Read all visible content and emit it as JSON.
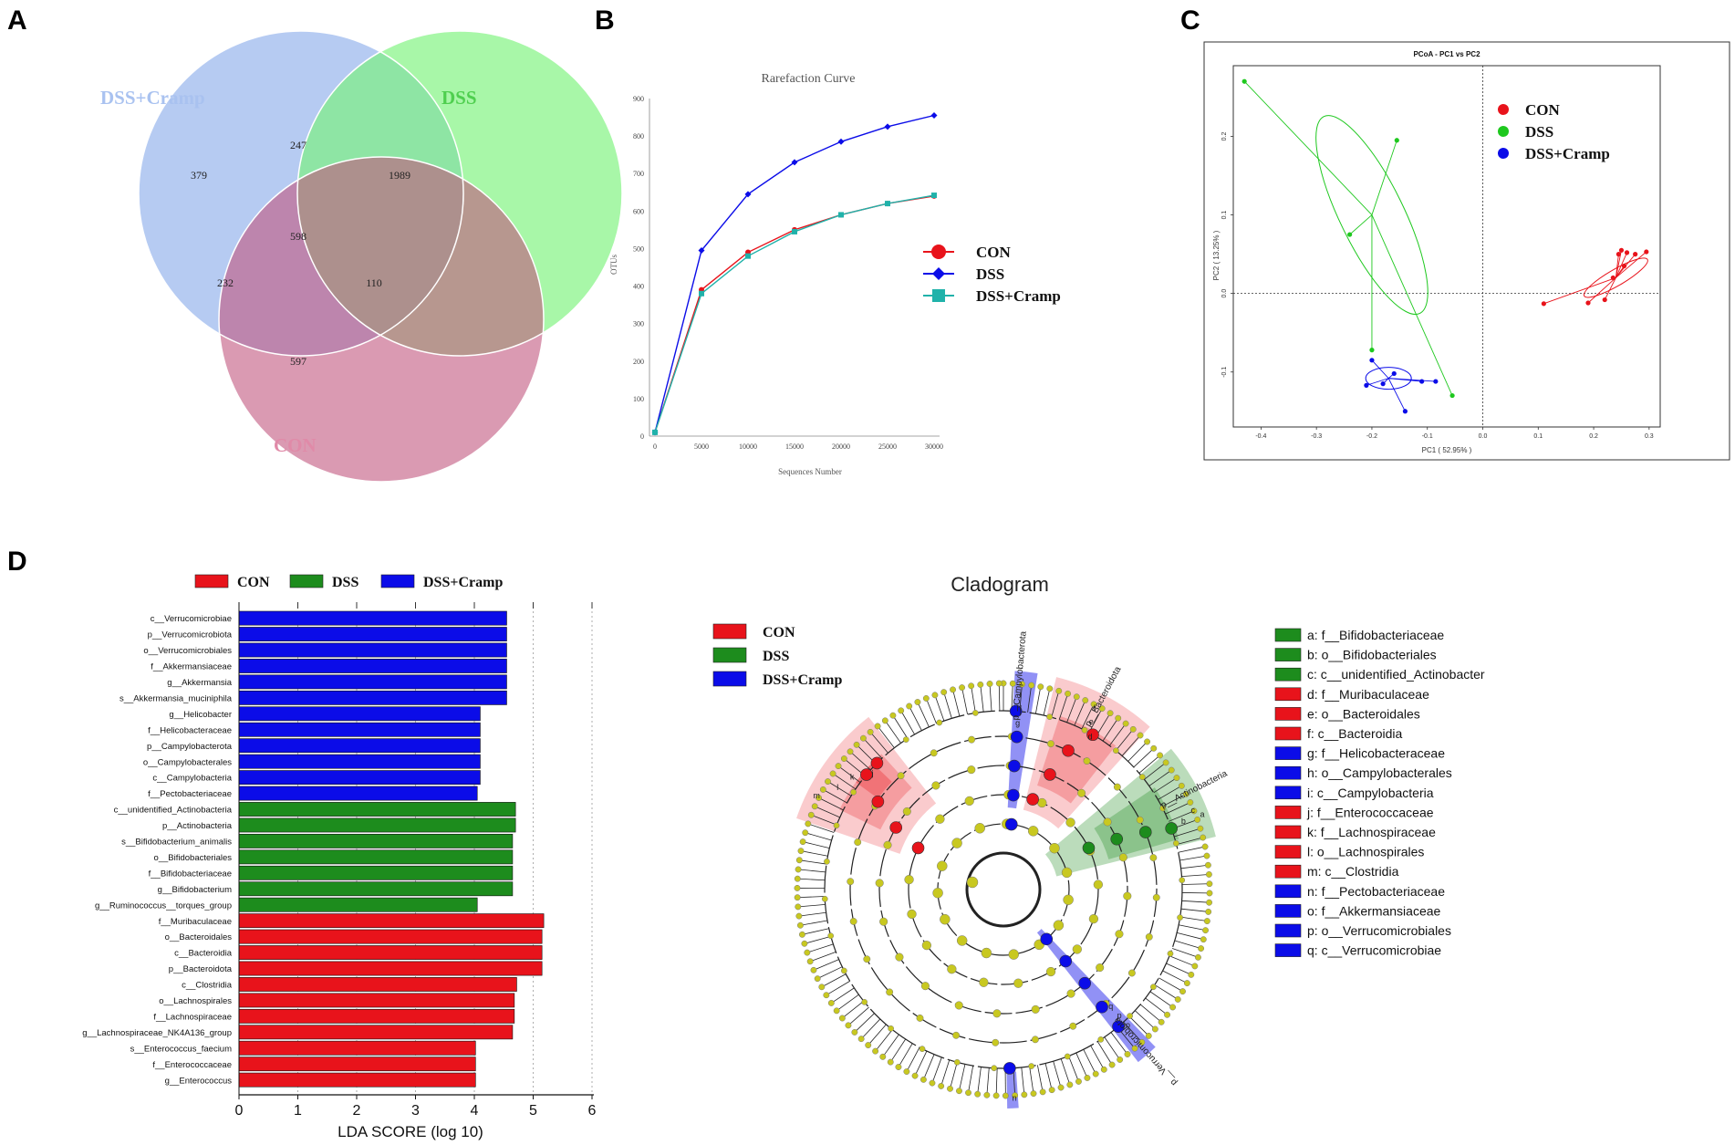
{
  "panel_labels": [
    "A",
    "B",
    "C",
    "D"
  ],
  "colors": {
    "con_red": "#e8131b",
    "dss_green": "#1d8c1d",
    "dss_cramp_blue": "#0b0ce8",
    "venn_blue": "#a9c2f0",
    "venn_green": "#7af27a",
    "venn_pink": "#d68aa6",
    "clado_yellow": "#c8c820"
  },
  "chart_data": [
    {
      "id": "A",
      "type": "venn",
      "sets": [
        {
          "name": "DSS+Cramp",
          "color": "#a9c2f0"
        },
        {
          "name": "DSS",
          "color": "#7af27a"
        },
        {
          "name": "CON",
          "color": "#d68aa6"
        }
      ],
      "regions": [
        {
          "sets": [
            "DSS+Cramp"
          ],
          "value": "379"
        },
        {
          "sets": [
            "DSS"
          ],
          "value": "1989"
        },
        {
          "sets": [
            "CON"
          ],
          "value": "597"
        },
        {
          "sets": [
            "DSS+Cramp",
            "DSS"
          ],
          "value": "247"
        },
        {
          "sets": [
            "DSS+Cramp",
            "CON"
          ],
          "value": "232"
        },
        {
          "sets": [
            "DSS",
            "CON"
          ],
          "value": "110"
        },
        {
          "sets": [
            "DSS+Cramp",
            "DSS",
            "CON"
          ],
          "value": "598"
        }
      ]
    },
    {
      "id": "B",
      "type": "line",
      "title": "Rarefaction Curve",
      "xlabel": "Sequences Number",
      "ylabel": "OTUs",
      "x": [
        0,
        5000,
        10000,
        15000,
        20000,
        25000,
        30000
      ],
      "xticks": [
        "0",
        "5000",
        "10000",
        "15000",
        "20000",
        "25000",
        "30000"
      ],
      "yticks": [
        "0",
        "100",
        "200",
        "300",
        "400",
        "500",
        "600",
        "700",
        "800",
        "900"
      ],
      "xlim": [
        0,
        30000
      ],
      "ylim": [
        0,
        900
      ],
      "series": [
        {
          "name": "CON",
          "color": "#e8131b",
          "marker": "circle",
          "values": [
            10,
            390,
            490,
            550,
            590,
            620,
            640
          ]
        },
        {
          "name": "DSS",
          "color": "#0b0ce8",
          "marker": "diamond",
          "values": [
            10,
            495,
            645,
            730,
            785,
            825,
            855
          ]
        },
        {
          "name": "DSS+Cramp",
          "color": "#20b2aa",
          "marker": "square",
          "values": [
            10,
            380,
            480,
            545,
            590,
            620,
            642
          ]
        }
      ]
    },
    {
      "id": "C",
      "type": "scatter",
      "title": "PCoA - PC1 vs PC2",
      "xlabel": "PC1 ( 52.95% )",
      "ylabel": "PC2 ( 13.25% )",
      "xticks": [
        "-0.4",
        "-0.3",
        "-0.2",
        "-0.1",
        "0.0",
        "0.1",
        "0.2",
        "0.3"
      ],
      "yticks": [
        "-0.1",
        "0.0",
        "0.1",
        "0.2"
      ],
      "xlim": [
        -0.45,
        0.32
      ],
      "ylim": [
        -0.17,
        0.29
      ],
      "series": [
        {
          "name": "CON",
          "color": "#e8131b",
          "points": [
            [
              0.11,
              -0.013
            ],
            [
              0.19,
              -0.012
            ],
            [
              0.22,
              -0.008
            ],
            [
              0.235,
              0.02
            ],
            [
              0.245,
              0.05
            ],
            [
              0.25,
              0.055
            ],
            [
              0.255,
              0.035
            ],
            [
              0.26,
              0.052
            ],
            [
              0.275,
              0.05
            ],
            [
              0.295,
              0.053
            ]
          ]
        },
        {
          "name": "DSS",
          "color": "#1ec81e",
          "points": [
            [
              -0.43,
              0.27
            ],
            [
              -0.155,
              0.195
            ],
            [
              -0.24,
              0.075
            ],
            [
              -0.2,
              -0.072
            ],
            [
              -0.055,
              -0.13
            ]
          ]
        },
        {
          "name": "DSS+Cramp",
          "color": "#0b0ce8",
          "points": [
            [
              -0.2,
              -0.085
            ],
            [
              -0.21,
              -0.117
            ],
            [
              -0.18,
              -0.115
            ],
            [
              -0.16,
              -0.102
            ],
            [
              -0.14,
              -0.15
            ],
            [
              -0.11,
              -0.112
            ],
            [
              -0.085,
              -0.112
            ]
          ]
        }
      ]
    },
    {
      "id": "D-left",
      "type": "bar",
      "orientation": "horizontal",
      "xlabel": "LDA SCORE (log 10)",
      "xticks": [
        "0",
        "1",
        "2",
        "3",
        "4",
        "5",
        "6"
      ],
      "xlim": [
        0,
        6
      ],
      "legend": [
        {
          "name": "CON",
          "color": "#e8131b"
        },
        {
          "name": "DSS",
          "color": "#1d8c1d"
        },
        {
          "name": "DSS+Cramp",
          "color": "#0b0ce8"
        }
      ],
      "bars": [
        {
          "label": "c__Verrucomicrobiae",
          "value": 4.55,
          "group": "DSS+Cramp"
        },
        {
          "label": "p__Verrucomicrobiota",
          "value": 4.55,
          "group": "DSS+Cramp"
        },
        {
          "label": "o__Verrucomicrobiales",
          "value": 4.55,
          "group": "DSS+Cramp"
        },
        {
          "label": "f__Akkermansiaceae",
          "value": 4.55,
          "group": "DSS+Cramp"
        },
        {
          "label": "g__Akkermansia",
          "value": 4.55,
          "group": "DSS+Cramp"
        },
        {
          "label": "s__Akkermansia_muciniphila",
          "value": 4.55,
          "group": "DSS+Cramp"
        },
        {
          "label": "g__Helicobacter",
          "value": 4.1,
          "group": "DSS+Cramp"
        },
        {
          "label": "f__Helicobacteraceae",
          "value": 4.1,
          "group": "DSS+Cramp"
        },
        {
          "label": "p__Campylobacterota",
          "value": 4.1,
          "group": "DSS+Cramp"
        },
        {
          "label": "o__Campylobacterales",
          "value": 4.1,
          "group": "DSS+Cramp"
        },
        {
          "label": "c__Campylobacteria",
          "value": 4.1,
          "group": "DSS+Cramp"
        },
        {
          "label": "f__Pectobacteriaceae",
          "value": 4.05,
          "group": "DSS+Cramp"
        },
        {
          "label": "c__unidentified_Actinobacteria",
          "value": 4.7,
          "group": "DSS"
        },
        {
          "label": "p__Actinobacteria",
          "value": 4.7,
          "group": "DSS"
        },
        {
          "label": "s__Bifidobacterium_animalis",
          "value": 4.65,
          "group": "DSS"
        },
        {
          "label": "o__Bifidobacteriales",
          "value": 4.65,
          "group": "DSS"
        },
        {
          "label": "f__Bifidobacteriaceae",
          "value": 4.65,
          "group": "DSS"
        },
        {
          "label": "g__Bifidobacterium",
          "value": 4.65,
          "group": "DSS"
        },
        {
          "label": "g__Ruminococcus__torques_group",
          "value": 4.05,
          "group": "DSS"
        },
        {
          "label": "f__Muribaculaceae",
          "value": 5.18,
          "group": "CON"
        },
        {
          "label": "o__Bacteroidales",
          "value": 5.15,
          "group": "CON"
        },
        {
          "label": "c__Bacteroidia",
          "value": 5.15,
          "group": "CON"
        },
        {
          "label": "p__Bacteroidota",
          "value": 5.15,
          "group": "CON"
        },
        {
          "label": "c__Clostridia",
          "value": 4.72,
          "group": "CON"
        },
        {
          "label": "o__Lachnospirales",
          "value": 4.68,
          "group": "CON"
        },
        {
          "label": "f__Lachnospiraceae",
          "value": 4.68,
          "group": "CON"
        },
        {
          "label": "g__Lachnospiraceae_NK4A136_group",
          "value": 4.65,
          "group": "CON"
        },
        {
          "label": "s__Enterococcus_faecium",
          "value": 4.02,
          "group": "CON"
        },
        {
          "label": "f__Enterococcaceae",
          "value": 4.02,
          "group": "CON"
        },
        {
          "label": "g__Enterococcus",
          "value": 4.02,
          "group": "CON"
        }
      ]
    },
    {
      "id": "D-right",
      "type": "cladogram",
      "title": "Cladogram",
      "legend": [
        {
          "name": "CON",
          "color": "#e8131b"
        },
        {
          "name": "DSS",
          "color": "#1d8c1d"
        },
        {
          "name": "DSS+Cramp",
          "color": "#0b0ce8"
        }
      ],
      "clade_labels": [
        "p__Campylobacterota",
        "p__Bacteroidota",
        "p__Actinobacteria",
        "p__Verrucomicrobiota"
      ],
      "key": [
        {
          "code": "a",
          "text": "a: f__Bifidobacteriaceae",
          "group": "DSS"
        },
        {
          "code": "b",
          "text": "b: o__Bifidobacteriales",
          "group": "DSS"
        },
        {
          "code": "c",
          "text": "c: c__unidentified_Actinobacter",
          "group": "DSS"
        },
        {
          "code": "d",
          "text": "d: f__Muribaculaceae",
          "group": "CON"
        },
        {
          "code": "e",
          "text": "e: o__Bacteroidales",
          "group": "CON"
        },
        {
          "code": "f",
          "text": "f: c__Bacteroidia",
          "group": "CON"
        },
        {
          "code": "g",
          "text": "g: f__Helicobacteraceae",
          "group": "DSS+Cramp"
        },
        {
          "code": "h",
          "text": "h: o__Campylobacterales",
          "group": "DSS+Cramp"
        },
        {
          "code": "i",
          "text": "i: c__Campylobacteria",
          "group": "DSS+Cramp"
        },
        {
          "code": "j",
          "text": "j: f__Enterococcaceae",
          "group": "CON"
        },
        {
          "code": "k",
          "text": "k: f__Lachnospiraceae",
          "group": "CON"
        },
        {
          "code": "l",
          "text": "l: o__Lachnospirales",
          "group": "CON"
        },
        {
          "code": "m",
          "text": "m: c__Clostridia",
          "group": "CON"
        },
        {
          "code": "n",
          "text": "n: f__Pectobacteriaceae",
          "group": "DSS+Cramp"
        },
        {
          "code": "o",
          "text": "o: f__Akkermansiaceae",
          "group": "DSS+Cramp"
        },
        {
          "code": "p",
          "text": "p: o__Verrucomicrobiales",
          "group": "DSS+Cramp"
        },
        {
          "code": "q",
          "text": "q: c__Verrucomicrobiae",
          "group": "DSS+Cramp"
        }
      ]
    }
  ]
}
